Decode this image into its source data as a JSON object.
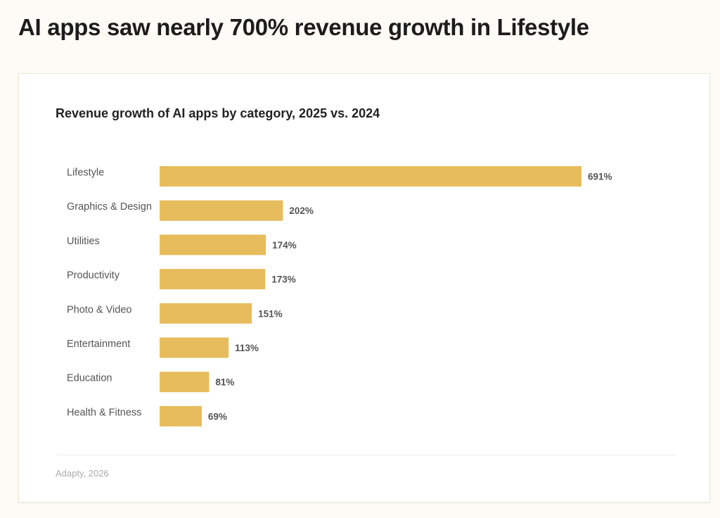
{
  "headline": "AI apps saw nearly 700% revenue growth in Lifestyle",
  "source": "Adapty, 2026",
  "colors": {
    "bar": "#e6bc5c",
    "background": "#fdfbf6",
    "card": "#ffffff"
  },
  "chart_data": {
    "type": "bar",
    "orientation": "horizontal",
    "title": "Revenue growth of AI apps by category, 2025 vs. 2024",
    "xlabel": "",
    "ylabel": "",
    "categories": [
      "Lifestyle",
      "Graphics & Design",
      "Utilities",
      "Productivity",
      "Photo & Video",
      "Entertainment",
      "Education",
      "Health & Fitness"
    ],
    "values": [
      691,
      202,
      174,
      173,
      151,
      113,
      81,
      69
    ],
    "labels": [
      "691%",
      "202%",
      "174%",
      "173%",
      "151%",
      "113%",
      "81%",
      "69%"
    ],
    "unit": "%",
    "xlim": [
      0,
      691
    ],
    "grid": false,
    "legend": "none"
  }
}
